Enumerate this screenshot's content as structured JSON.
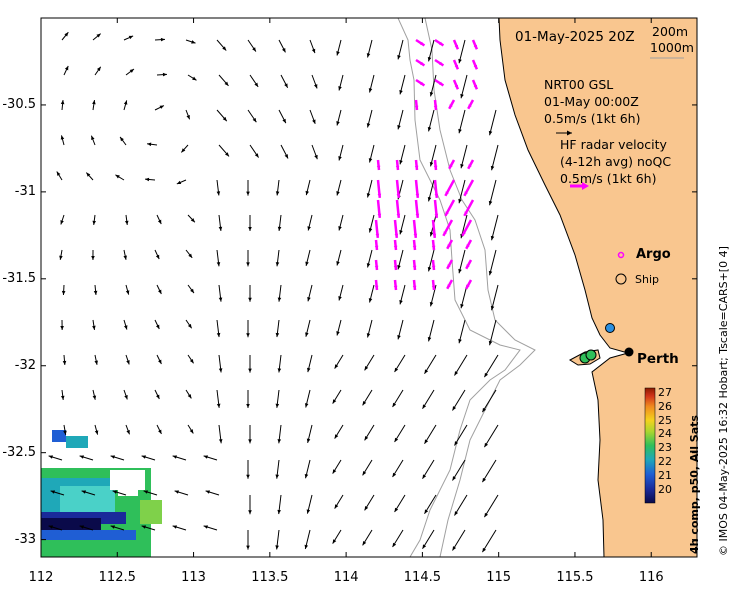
{
  "map": {
    "datetime": "01-May-2025 20Z",
    "contour_labels": [
      "200m",
      "1000m"
    ],
    "model_info": [
      "NRT00 GSL",
      "01-May 00:00Z",
      "0.5m/s (1kt 6h)"
    ],
    "radar_info": [
      "HF radar velocity",
      "(4-12h avg) noQC",
      "0.5m/s (1kt 6h)"
    ],
    "argo_label": "Argo",
    "ship_label": "Ship",
    "city_label": "Perth",
    "credit": "© IMOS 04-May-2025 16:32 Hobart; Tscale=CARS+[0 4]",
    "colorbar_title": "4h comp, p50, All Sats",
    "colorbar_ticks": [
      "27",
      "26",
      "25",
      "24",
      "23",
      "22",
      "21",
      "20"
    ],
    "colors": {
      "land": "#f9c68f",
      "model_arrow": "#000000",
      "radar_arrow": "#ff00ff",
      "argo": "#ff00ff",
      "bathymetry": "#a0a0a0",
      "colorbar": [
        "#8b1a00",
        "#d2341a",
        "#f08a1e",
        "#f4d21e",
        "#a8d630",
        "#2fbf5a",
        "#1fa8b8",
        "#1f5ed4",
        "#1a2a9a",
        "#0a0a4a"
      ]
    }
  },
  "axes": {
    "x_ticks": [
      "112",
      "112.5",
      "113",
      "113.5",
      "114",
      "114.5",
      "115",
      "115.5",
      "116"
    ],
    "y_ticks": [
      "-30.5",
      "-31",
      "-31.5",
      "-32",
      "-32.5",
      "-33"
    ],
    "xlim": [
      112,
      116.3
    ],
    "ylim": [
      -33.1,
      -30.0
    ]
  }
}
